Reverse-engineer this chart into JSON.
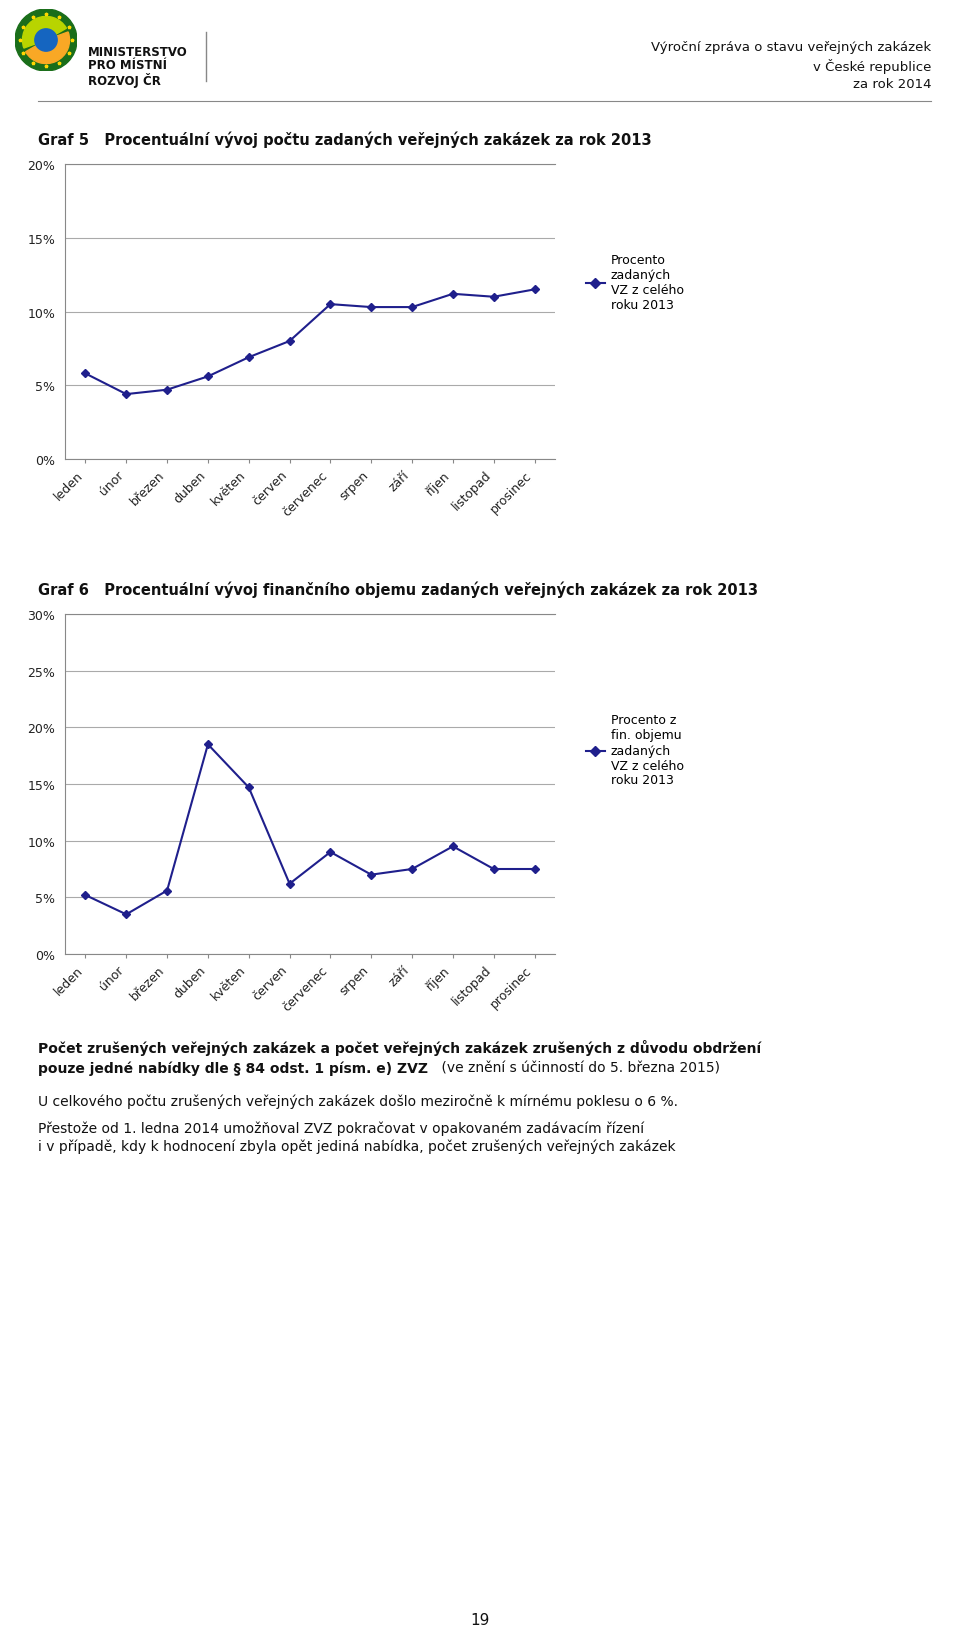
{
  "months": [
    "leden",
    "únor",
    "březen",
    "duben",
    "květen",
    "červen",
    "červenec",
    "srpen",
    "září",
    "říjen",
    "listopad",
    "prosinec"
  ],
  "chart1_values": [
    5.8,
    4.4,
    4.7,
    5.6,
    6.9,
    8.0,
    10.5,
    10.3,
    10.3,
    11.2,
    11.0,
    11.5
  ],
  "chart1_title": "Graf 5   Procentuální vývoj počtu zadaných veřejných zakázek za rok 2013",
  "chart1_ylim": [
    0,
    20
  ],
  "chart1_yticks": [
    0,
    5,
    10,
    15,
    20
  ],
  "chart1_ytick_labels": [
    "0%",
    "5%",
    "10%",
    "15%",
    "20%"
  ],
  "chart1_legend": "Procento\nzadaných\nVZ z celého\nroku 2013",
  "chart2_values": [
    5.2,
    3.5,
    5.6,
    18.5,
    14.7,
    6.2,
    9.0,
    7.0,
    7.5,
    9.5,
    7.5,
    7.5
  ],
  "chart2_title": "Graf 6   Procentuální vývoj finančního objemu zadaných veřejných zakázek za rok 2013",
  "chart2_ylim": [
    0,
    30
  ],
  "chart2_yticks": [
    0,
    5,
    10,
    15,
    20,
    25,
    30
  ],
  "chart2_ytick_labels": [
    "0%",
    "5%",
    "10%",
    "15%",
    "20%",
    "25%",
    "30%"
  ],
  "chart2_legend": "Procento z\nfin. objemu\nzadaných\nVZ z celého\nroku 2013",
  "line_color": "#1F1F8C",
  "header_right_line1": "Výroční zpráva o stavu veřejných zakázek",
  "header_right_line2": "v České republice",
  "header_right_line3": "za rok 2014",
  "footer_line1_bold": "Počet zrušených veřejných zakázek a počet veřejných zakázek zrušených z důvodu obdržení",
  "footer_line2_bold": "pouze jedné nabídky dle § 84 odst. 1 písm. e) ZVZ",
  "footer_line2_normal": " (ve znění s účinností do 5. března 2015)",
  "footer_line3": "U celkového počtu zrušených veřejných zakázek došlo meziročně k mírnému poklesu o 6 %.",
  "footer_line4": "Přestože od 1. ledna 2014 umožňoval ZVZ pokračovat v opakovaném zadávacím řízení",
  "footer_line5": "i v případě, kdy k hodnocení zbyla opět jediná nabídka, počet zrušených veřejných zakázek",
  "page_number": "19",
  "background_color": "#ffffff",
  "grid_color": "#aaaaaa",
  "logo_green": "#2E7D32",
  "logo_yellow": "#F9A825",
  "logo_blue": "#1565C0",
  "ministry_text": [
    "MINISTERSTVO",
    "PRO MÍSTNÍ",
    "ROZVOJ ČR"
  ]
}
